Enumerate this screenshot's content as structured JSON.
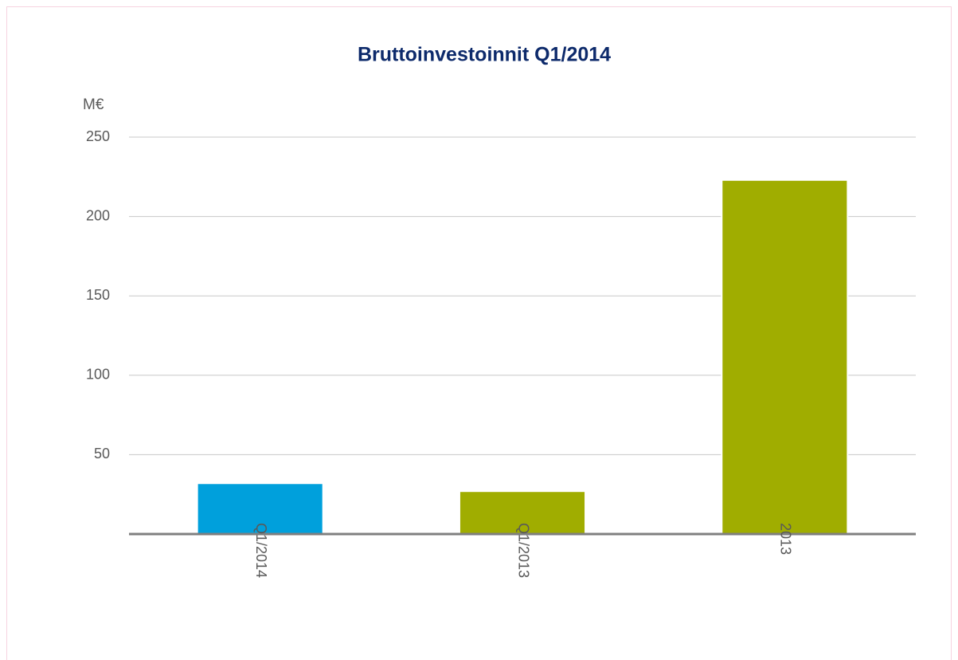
{
  "chart_data": {
    "type": "bar",
    "title": "Bruttoinvestoinnit Q1/2014",
    "y_label": "M€",
    "categories": [
      "Q1/2014",
      "Q1/2013",
      "2013"
    ],
    "values": [
      32,
      27,
      223
    ],
    "colors": [
      "#00a0dc",
      "#a0ad00",
      "#a0ad00"
    ],
    "ylim": [
      0,
      250
    ],
    "yticks": [
      50,
      100,
      150,
      200,
      250
    ],
    "grid": true
  }
}
